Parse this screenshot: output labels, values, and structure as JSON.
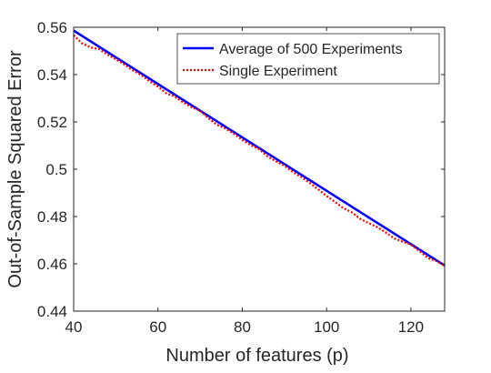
{
  "chart_data": {
    "type": "line",
    "xlabel": "Number of features (p)",
    "ylabel": "Out-of-Sample Squared Error",
    "xlim": [
      40,
      128
    ],
    "ylim": [
      0.44,
      0.56
    ],
    "xticks": [
      40,
      60,
      80,
      100,
      120
    ],
    "yticks": [
      0.44,
      0.46,
      0.48,
      0.5,
      0.52,
      0.54,
      0.56
    ],
    "xtick_labels": [
      "40",
      "60",
      "80",
      "100",
      "120"
    ],
    "ytick_labels": [
      "0.44",
      "0.46",
      "0.48",
      "0.5",
      "0.52",
      "0.54",
      "0.56"
    ],
    "grid": false,
    "legend_position": "top-right",
    "series": [
      {
        "name": "Average of 500 Experiments",
        "color": "#0000ff",
        "style": "solid",
        "x": [
          40,
          128
        ],
        "y": [
          0.5586,
          0.4593
        ]
      },
      {
        "name": "Single Experiment",
        "color": "#ff0000",
        "style": "dotted",
        "x": [
          40,
          42,
          44,
          46,
          48,
          50,
          52,
          54,
          56,
          58,
          60,
          62,
          64,
          66,
          68,
          70,
          72,
          74,
          76,
          78,
          80,
          82,
          84,
          86,
          88,
          90,
          92,
          94,
          96,
          98,
          100,
          102,
          104,
          106,
          108,
          110,
          112,
          114,
          116,
          118,
          120,
          122,
          124,
          126,
          128
        ],
        "y": [
          0.5567,
          0.5532,
          0.5515,
          0.5508,
          0.5485,
          0.5465,
          0.5443,
          0.5418,
          0.5398,
          0.5372,
          0.5349,
          0.5321,
          0.5307,
          0.5282,
          0.5262,
          0.5247,
          0.5215,
          0.5188,
          0.5172,
          0.515,
          0.5124,
          0.5102,
          0.5085,
          0.5054,
          0.5033,
          0.5015,
          0.4988,
          0.4967,
          0.4942,
          0.4915,
          0.4887,
          0.4862,
          0.4835,
          0.4818,
          0.479,
          0.4772,
          0.4755,
          0.4733,
          0.4708,
          0.4694,
          0.4681,
          0.4655,
          0.4625,
          0.4612,
          0.4592
        ]
      }
    ]
  }
}
